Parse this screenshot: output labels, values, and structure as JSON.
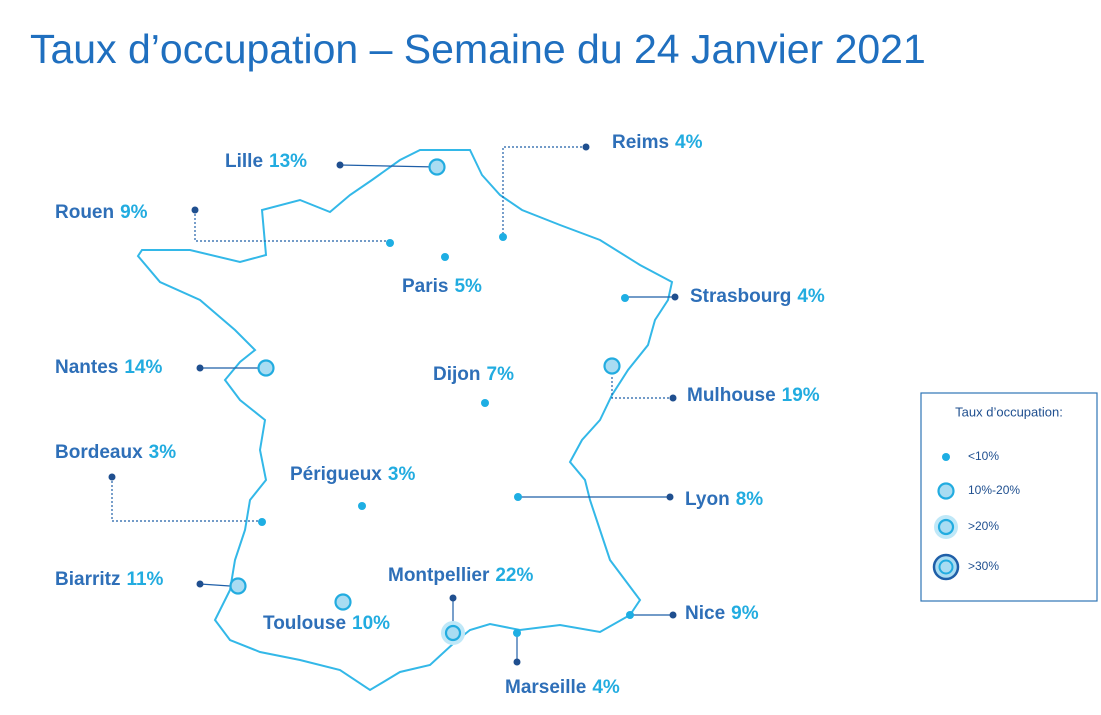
{
  "title": "Taux d’occupation – Semaine du 24 Janvier 2021",
  "cities": [
    {
      "name": "Lille",
      "rate": "13%"
    },
    {
      "name": "Reims",
      "rate": "4%"
    },
    {
      "name": "Rouen",
      "rate": "9%"
    },
    {
      "name": "Paris",
      "rate": "5%"
    },
    {
      "name": "Strasbourg",
      "rate": "4%"
    },
    {
      "name": "Nantes",
      "rate": "14%"
    },
    {
      "name": "Dijon",
      "rate": "7%"
    },
    {
      "name": "Mulhouse",
      "rate": "19%"
    },
    {
      "name": "Bordeaux",
      "rate": "3%"
    },
    {
      "name": "Périgueux",
      "rate": "3%"
    },
    {
      "name": "Lyon",
      "rate": "8%"
    },
    {
      "name": "Biarritz",
      "rate": "11%"
    },
    {
      "name": "Montpellier",
      "rate": "22%"
    },
    {
      "name": "Toulouse",
      "rate": "10%"
    },
    {
      "name": "Nice",
      "rate": "9%"
    },
    {
      "name": "Marseille",
      "rate": "4%"
    }
  ],
  "legend": {
    "title": "Taux d’occupation:",
    "items": [
      "<10%",
      "10%-20%",
      ">20%",
      ">30%"
    ]
  }
}
